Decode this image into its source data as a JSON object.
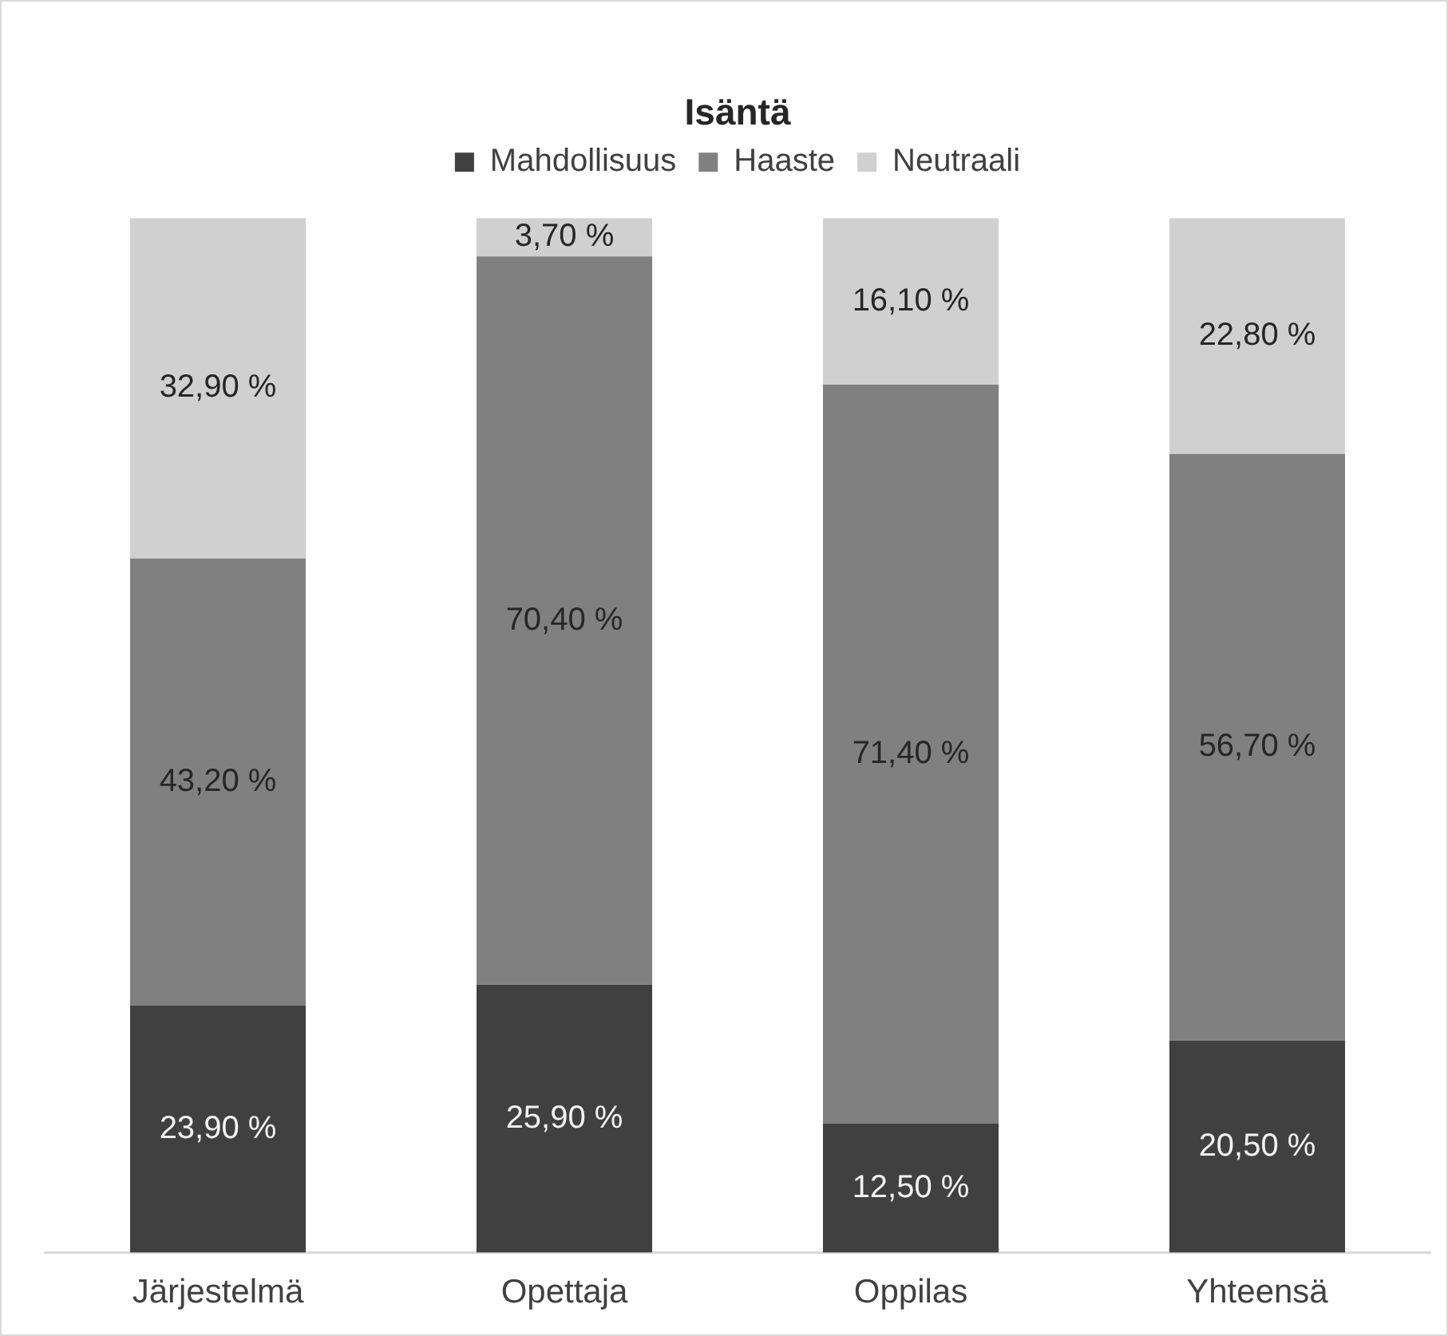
{
  "chart_data": {
    "type": "bar",
    "title": "Isäntä",
    "categories": [
      "Järjestelmä",
      "Opettaja",
      "Oppilas",
      "Yhteensä"
    ],
    "stacked": true,
    "legend": "top",
    "ylim": [
      0,
      100
    ],
    "tick_labels": "x",
    "series": [
      {
        "name": "Mahdollisuus",
        "color": "#404040",
        "values": [
          23.9,
          25.9,
          12.5,
          20.5
        ],
        "value_labels": [
          "23,90 %",
          "25,90 %",
          "12,50 %",
          "20,50 %"
        ]
      },
      {
        "name": "Haaste",
        "color": "#808080",
        "values": [
          43.2,
          70.4,
          71.4,
          56.7
        ],
        "value_labels": [
          "43,20 %",
          "70,40 %",
          "71,40 %",
          "56,70 %"
        ]
      },
      {
        "name": "Neutraali",
        "color": "#d0d0d0",
        "values": [
          32.9,
          3.7,
          16.1,
          22.8
        ],
        "value_labels": [
          "32,90 %",
          "3,70 %",
          "16,10 %",
          "22,80 %"
        ]
      }
    ]
  }
}
